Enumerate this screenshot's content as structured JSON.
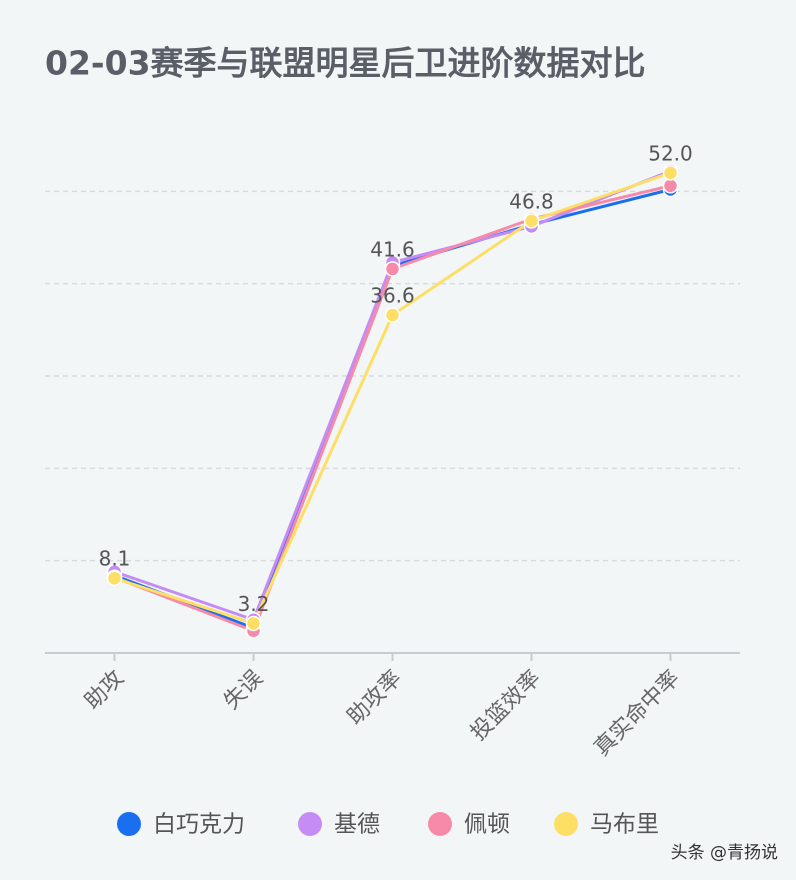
{
  "chart_data": {
    "type": "line",
    "title": "02-03赛季与联盟明星后卫进阶数据对比",
    "categories": [
      "助攻",
      "失误",
      "助攻率",
      "投篮效率",
      "真实命中率"
    ],
    "ylim": [
      0,
      60
    ],
    "yticks": [
      0,
      10,
      20,
      30,
      40,
      50
    ],
    "grid": true,
    "series": [
      {
        "name": "白巧克力",
        "color": "#1a6ff0",
        "values": [
          8.4,
          2.7,
          41.9,
          46.4,
          50.2
        ]
      },
      {
        "name": "基德",
        "color": "#c58cf5",
        "values": [
          8.8,
          3.6,
          42.3,
          46.2,
          52.2
        ]
      },
      {
        "name": "佩顿",
        "color": "#f78aa8",
        "values": [
          8.2,
          2.4,
          41.6,
          47.0,
          50.6
        ],
        "value_labels": [
          null,
          null,
          "41.6",
          null,
          null
        ]
      },
      {
        "name": "马布里",
        "color": "#fddf66",
        "values": [
          8.1,
          3.2,
          36.6,
          46.8,
          52.0
        ],
        "value_labels": [
          "8.1",
          "3.2",
          "36.6",
          "46.8",
          "52.0"
        ]
      }
    ]
  },
  "watermark": "头条 @青扬说"
}
